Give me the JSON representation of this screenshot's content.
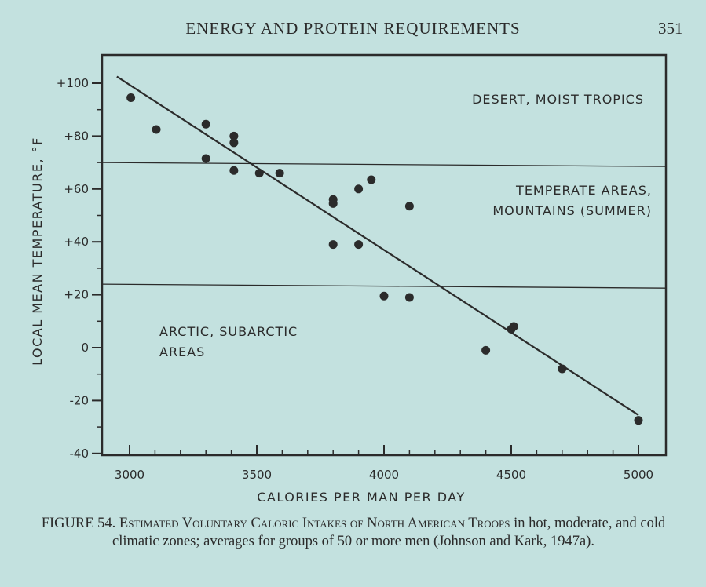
{
  "header": {
    "running_title": "ENERGY AND PROTEIN REQUIREMENTS",
    "page_number": "351"
  },
  "chart_data": {
    "type": "scatter",
    "xlabel": "CALORIES PER MAN PER DAY",
    "ylabel": "LOCAL MEAN TEMPERATURE, °F",
    "xlim": [
      2950,
      5100
    ],
    "ylim": [
      -40,
      110
    ],
    "x_ticks": [
      3000,
      3500,
      4000,
      4500,
      5000
    ],
    "x_tick_labels": [
      "3000",
      "3500",
      "4000",
      "4500",
      "5000"
    ],
    "y_ticks": [
      100,
      80,
      60,
      40,
      20,
      0,
      -20,
      -40
    ],
    "y_tick_labels": [
      "+100",
      "+80",
      "+60",
      "+40",
      "+20",
      "0",
      "-20",
      "-40"
    ],
    "x_minor_step": 100,
    "y_minor_step": 10,
    "grid": false,
    "points": [
      {
        "x": 3005,
        "y": 94.5
      },
      {
        "x": 3105,
        "y": 82.5
      },
      {
        "x": 3300,
        "y": 84.5
      },
      {
        "x": 3300,
        "y": 71.5
      },
      {
        "x": 3410,
        "y": 80
      },
      {
        "x": 3410,
        "y": 77.5
      },
      {
        "x": 3410,
        "y": 67
      },
      {
        "x": 3510,
        "y": 66
      },
      {
        "x": 3590,
        "y": 66
      },
      {
        "x": 3800,
        "y": 56
      },
      {
        "x": 3800,
        "y": 54.5
      },
      {
        "x": 3800,
        "y": 39
      },
      {
        "x": 3900,
        "y": 60
      },
      {
        "x": 3900,
        "y": 39
      },
      {
        "x": 3950,
        "y": 63.5
      },
      {
        "x": 4000,
        "y": 19.5
      },
      {
        "x": 4100,
        "y": 53.5
      },
      {
        "x": 4100,
        "y": 19
      },
      {
        "x": 4400,
        "y": -1
      },
      {
        "x": 4500,
        "y": 7
      },
      {
        "x": 4510,
        "y": 8
      },
      {
        "x": 4700,
        "y": -8
      },
      {
        "x": 5000,
        "y": -27.5
      }
    ],
    "regression_line": {
      "x": [
        2950,
        5000
      ],
      "y": [
        102.5,
        -25.5
      ]
    },
    "zone_boundaries": [
      {
        "y_left": 70,
        "y_right": 68.5
      },
      {
        "y_left": 24,
        "y_right": 22.5
      }
    ],
    "zones": [
      {
        "lines": [
          "DESERT, MOIST TROPICS"
        ]
      },
      {
        "lines": [
          "TEMPERATE AREAS,",
          "MOUNTAINS (SUMMER)"
        ]
      },
      {
        "lines": [
          "ARCTIC, SUBARCTIC",
          "AREAS"
        ]
      }
    ]
  },
  "caption": {
    "lead": "FIGURE 54.",
    "title_smallcaps": "Estimated Voluntary Caloric Intakes of North American Troops",
    "rest": "in hot, moderate, and cold climatic zones; averages for groups of 50 or more men (Johnson and Kark, 1947a)."
  }
}
